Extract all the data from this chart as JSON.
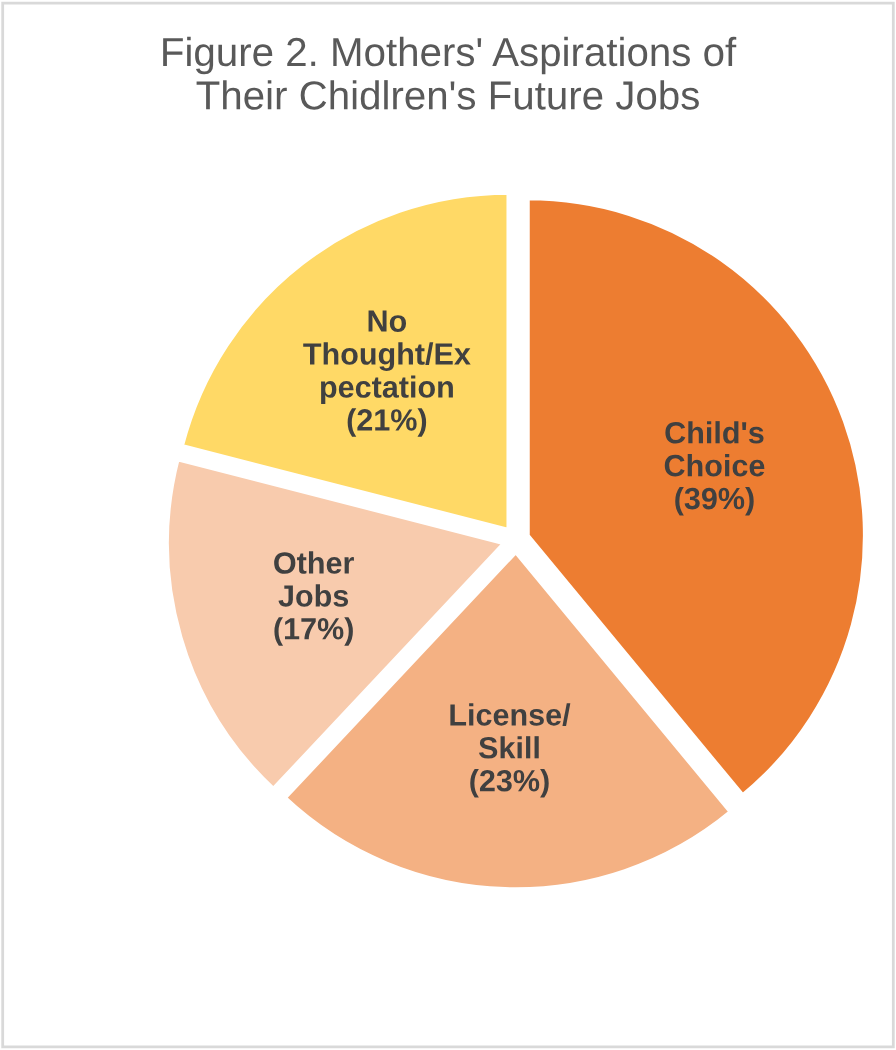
{
  "chart_data": {
    "type": "pie",
    "title": "Figure 2. Mothers' Aspirations of\nTheir Chidlren's Future Jobs",
    "categories": [
      "Child's\nChoice",
      "License/\nSkill",
      "Other\nJobs",
      "No\nThought/Ex\npectation"
    ],
    "values": [
      39,
      23,
      17,
      21
    ],
    "colors": [
      "#ed7d31",
      "#f4b183",
      "#f8cbad",
      "#ffd966"
    ],
    "value_labels": [
      "(39%)",
      "(23%)",
      "(17%)",
      "(21%)"
    ],
    "legend": false
  }
}
